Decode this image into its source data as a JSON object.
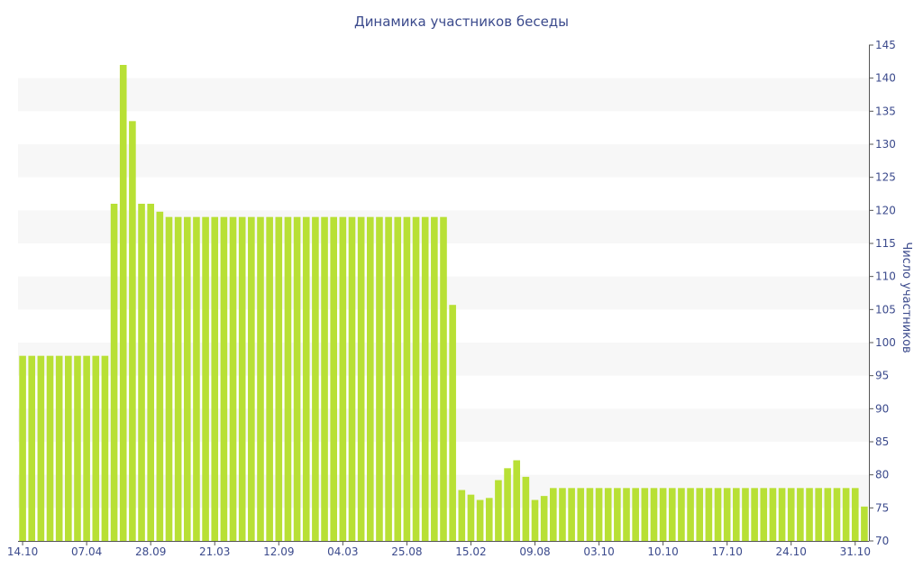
{
  "chart_data": {
    "type": "bar",
    "title": "Динамика участников беседы",
    "xlabel": "",
    "ylabel": "Число участников",
    "ylim": [
      70,
      145
    ],
    "y_ticks": [
      70,
      75,
      80,
      85,
      90,
      95,
      100,
      105,
      110,
      115,
      120,
      125,
      130,
      135,
      140,
      145
    ],
    "y_axis_position": "right",
    "grid": "alternating horizontal bands",
    "legend": "none",
    "x_tick_labels": [
      "14.10",
      "07.04",
      "28.09",
      "21.03",
      "12.09",
      "04.03",
      "25.08",
      "15.02",
      "09.08",
      "03.10",
      "10.10",
      "17.10",
      "24.10",
      "31.10"
    ],
    "x_tick_bar_index": [
      0,
      7,
      14,
      21,
      28,
      35,
      42,
      49,
      56,
      63,
      70,
      77,
      84,
      91
    ],
    "values": [
      98,
      98,
      98,
      98,
      98,
      98,
      98,
      98,
      98,
      98,
      121,
      142,
      133.5,
      121,
      121,
      119.8,
      119,
      119,
      119,
      119,
      119,
      119,
      119,
      119,
      119,
      119,
      119,
      119,
      119,
      119,
      119,
      119,
      119,
      119,
      119,
      119,
      119,
      119,
      119,
      119,
      119,
      119,
      119,
      119,
      119,
      119,
      119,
      105.7,
      77.7,
      77,
      76.2,
      76.5,
      79.2,
      81,
      82.2,
      79.7,
      76.2,
      76.8,
      78,
      78,
      78,
      78,
      78,
      78,
      78,
      78,
      78,
      78,
      78,
      78,
      78,
      78,
      78,
      78,
      78,
      78,
      78,
      78,
      78,
      78,
      78,
      78,
      78,
      78,
      78,
      78,
      78,
      78,
      78,
      78,
      78,
      78,
      75.2
    ]
  },
  "colors": {
    "bar": "#b8e035",
    "band": "#f7f7f7",
    "text": "#3b4a8c",
    "axis": "#555555"
  }
}
